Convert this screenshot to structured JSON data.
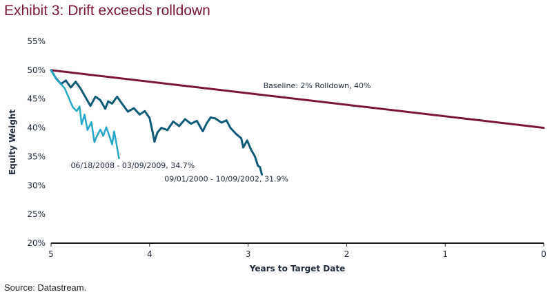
{
  "page": {
    "title": "Exhibit 3: Drift exceeds rolldown",
    "source": "Source: Datastream."
  },
  "colors": {
    "title": "#7b1535",
    "baseline": "#7b1535",
    "series_2000": "#0f5a78",
    "series_2008": "#25a8c9",
    "axis": "#1b1b1b",
    "text": "#1f2a3a"
  },
  "chart_data": {
    "type": "line",
    "title": "Exhibit 3: Drift exceeds rolldown",
    "xlabel": "Years to Target Date",
    "ylabel": "Equity Weight",
    "xlim": [
      5,
      0
    ],
    "ylim": [
      20,
      55
    ],
    "x_ticks": [
      5,
      4,
      3,
      2,
      1,
      0
    ],
    "x_tick_labels": [
      "5",
      "4",
      "3",
      "2",
      "1",
      "0"
    ],
    "y_ticks": [
      20,
      25,
      30,
      35,
      40,
      45,
      50,
      55
    ],
    "y_tick_labels": [
      "20%",
      "25%",
      "30%",
      "35%",
      "40%",
      "45%",
      "50%",
      "55%"
    ],
    "grid": false,
    "series": [
      {
        "name": "Baseline: 2% Rolldown, 40%",
        "key": "baseline",
        "label": "Baseline: 2% Rolldown, 40%",
        "points": [
          [
            5.0,
            50.0
          ],
          [
            0.0,
            40.0
          ]
        ]
      },
      {
        "name": "09/01/2000 - 10/09/2002, 31.9%",
        "key": "series_2000",
        "label": "09/01/2000 - 10/09/2002, 31.9%",
        "points": [
          [
            5.0,
            50.0
          ],
          [
            4.95,
            48.6
          ],
          [
            4.9,
            47.6
          ],
          [
            4.85,
            48.2
          ],
          [
            4.8,
            47.0
          ],
          [
            4.75,
            48.0
          ],
          [
            4.7,
            46.8
          ],
          [
            4.65,
            45.3
          ],
          [
            4.6,
            43.8
          ],
          [
            4.55,
            45.4
          ],
          [
            4.5,
            44.8
          ],
          [
            4.45,
            43.3
          ],
          [
            4.42,
            44.6
          ],
          [
            4.38,
            44.2
          ],
          [
            4.33,
            45.4
          ],
          [
            4.28,
            44.2
          ],
          [
            4.22,
            42.8
          ],
          [
            4.16,
            43.4
          ],
          [
            4.1,
            42.3
          ],
          [
            4.05,
            42.9
          ],
          [
            4.0,
            41.7
          ],
          [
            3.97,
            39.3
          ],
          [
            3.95,
            37.6
          ],
          [
            3.92,
            39.2
          ],
          [
            3.88,
            40.0
          ],
          [
            3.82,
            39.6
          ],
          [
            3.76,
            41.1
          ],
          [
            3.7,
            40.3
          ],
          [
            3.64,
            41.5
          ],
          [
            3.58,
            40.7
          ],
          [
            3.52,
            41.2
          ],
          [
            3.46,
            39.4
          ],
          [
            3.42,
            40.8
          ],
          [
            3.38,
            41.8
          ],
          [
            3.33,
            41.6
          ],
          [
            3.27,
            40.9
          ],
          [
            3.22,
            41.3
          ],
          [
            3.18,
            40.0
          ],
          [
            3.12,
            38.9
          ],
          [
            3.07,
            38.2
          ],
          [
            3.05,
            36.6
          ],
          [
            3.01,
            37.8
          ],
          [
            2.97,
            36.2
          ],
          [
            2.93,
            35.0
          ],
          [
            2.9,
            33.4
          ],
          [
            2.88,
            33.2
          ],
          [
            2.86,
            31.9
          ]
        ],
        "end_value": 31.9
      },
      {
        "name": "06/18/2008 - 03/09/2009, 34.7%",
        "key": "series_2008",
        "label": "06/18/2008 - 03/09/2009, 34.7%",
        "points": [
          [
            5.0,
            50.0
          ],
          [
            4.95,
            48.5
          ],
          [
            4.9,
            47.6
          ],
          [
            4.86,
            46.8
          ],
          [
            4.82,
            45.2
          ],
          [
            4.78,
            43.6
          ],
          [
            4.74,
            42.9
          ],
          [
            4.71,
            43.7
          ],
          [
            4.69,
            40.6
          ],
          [
            4.66,
            42.3
          ],
          [
            4.63,
            39.6
          ],
          [
            4.59,
            41.0
          ],
          [
            4.56,
            37.5
          ],
          [
            4.54,
            38.4
          ],
          [
            4.5,
            39.7
          ],
          [
            4.47,
            38.6
          ],
          [
            4.44,
            40.1
          ],
          [
            4.41,
            38.7
          ],
          [
            4.38,
            37.1
          ],
          [
            4.36,
            39.4
          ],
          [
            4.34,
            37.6
          ],
          [
            4.31,
            34.7
          ]
        ],
        "end_value": 34.7
      }
    ],
    "annotations": [
      {
        "text": "Baseline: 2% Rolldown, 40%",
        "series": "baseline"
      },
      {
        "text": "09/01/2000 - 10/09/2002, 31.9%",
        "series": "series_2000"
      },
      {
        "text": "06/18/2008 - 03/09/2009, 34.7%",
        "series": "series_2008"
      }
    ]
  }
}
